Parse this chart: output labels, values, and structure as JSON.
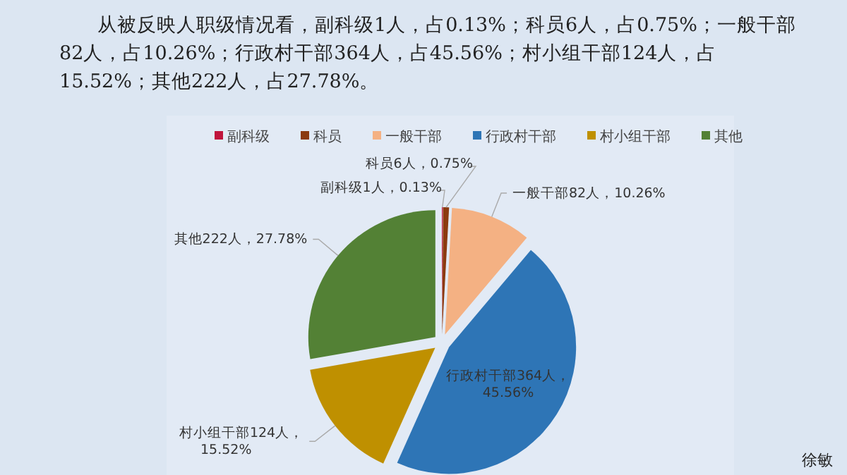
{
  "chart_data": {
    "type": "pie",
    "title": "从被反映人职级情况看，副科级1人，占0.13%；科员6人，占0.75%；一般干部82人，占10.26%；行政村干部364人，占45.56%；村小组干部124人，占15.52%；其他222人，占27.78%。",
    "categories": [
      "副科级",
      "科员",
      "一般干部",
      "行政村干部",
      "村小组干部",
      "其他"
    ],
    "values": [
      1,
      6,
      82,
      364,
      124,
      222
    ],
    "value_labels": [
      "1人，0.13%",
      "6人，0.75%",
      "82人，10.26%",
      "364人，45.56%",
      "124人，15.52%",
      "222人，27.78%"
    ],
    "colors": [
      "#c0143c",
      "#8b3a0f",
      "#f4b183",
      "#2e75b6",
      "#bf9000",
      "#538135"
    ],
    "legend": "top",
    "annotations": [
      "徐敏"
    ]
  }
}
